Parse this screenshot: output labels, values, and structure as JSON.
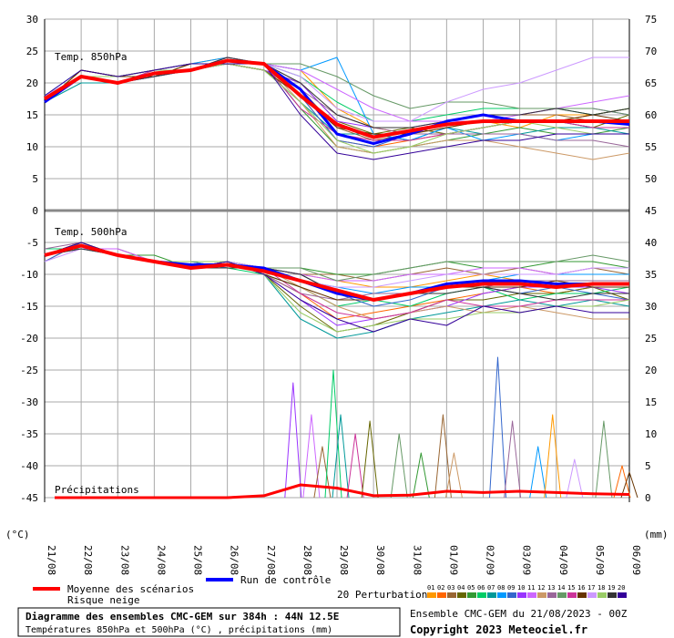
{
  "chart_data": {
    "type": "line",
    "x": [
      "21/08",
      "22/08",
      "23/08",
      "24/08",
      "25/08",
      "26/08",
      "27/08",
      "28/08",
      "29/08",
      "30/08",
      "31/08",
      "01/09",
      "02/09",
      "03/09",
      "04/09",
      "05/09",
      "06/09"
    ],
    "y_left_ticks": [
      "30",
      "25",
      "20",
      "15",
      "10",
      "5",
      "0",
      "-5",
      "-10",
      "-15",
      "-20",
      "-25",
      "-30",
      "-35",
      "-40",
      "-45"
    ],
    "y_right_ticks": [
      "75",
      "70",
      "65",
      "60",
      "55",
      "50",
      "45",
      "40",
      "35",
      "30",
      "25",
      "20",
      "15",
      "10",
      "5",
      "0"
    ],
    "ylabel_left": "(°C)",
    "ylabel_right": "(mm)",
    "panels": {
      "t850": {
        "label": "Temp. 850hPa",
        "ylim": [
          0,
          30
        ],
        "mean": [
          17.5,
          21,
          20,
          21.5,
          22,
          23.5,
          23,
          18,
          13.5,
          11.5,
          12.5,
          13.5,
          14,
          14,
          14,
          14,
          14
        ],
        "control": [
          17,
          21,
          20,
          21.5,
          22,
          23.5,
          23,
          19,
          12,
          10.5,
          12,
          14,
          15,
          14,
          14,
          14,
          13.5
        ],
        "perturbations": [
          [
            17,
            22,
            21,
            22,
            23,
            24,
            23,
            22,
            16,
            13,
            12,
            13,
            14,
            13,
            15,
            15,
            16
          ],
          [
            18,
            21,
            20,
            21,
            22,
            23,
            22,
            18,
            11,
            10,
            11,
            12,
            13,
            14,
            14,
            15,
            16
          ],
          [
            17,
            21,
            20,
            22,
            22,
            24,
            23,
            19,
            13,
            11,
            12,
            14,
            15,
            15,
            15,
            14,
            14
          ],
          [
            17,
            22,
            21,
            21,
            23,
            23,
            22,
            20,
            14,
            12,
            13,
            12,
            13,
            14,
            14,
            13,
            15
          ],
          [
            18,
            21,
            20,
            21,
            22,
            24,
            23,
            16,
            10,
            9,
            10,
            11,
            12,
            13,
            12,
            12,
            13
          ],
          [
            17,
            21,
            21,
            22,
            22,
            23,
            23,
            21,
            17,
            14,
            14,
            15,
            16,
            16,
            16,
            15,
            16
          ],
          [
            17,
            20,
            20,
            21,
            22,
            23,
            22,
            17,
            12,
            12,
            11,
            13,
            12,
            12,
            13,
            13,
            12
          ],
          [
            18,
            22,
            21,
            22,
            23,
            24,
            23,
            22,
            24,
            12,
            11,
            13,
            11,
            12,
            11,
            12,
            12
          ],
          [
            17,
            21,
            20,
            21,
            22,
            24,
            23,
            18,
            11,
            10,
            12,
            12,
            13,
            14,
            14,
            13,
            13
          ],
          [
            17,
            21,
            21,
            22,
            23,
            23,
            22,
            20,
            14,
            13,
            13,
            14,
            15,
            15,
            16,
            16,
            15
          ],
          [
            18,
            21,
            20,
            21,
            22,
            23,
            23,
            22,
            19,
            16,
            14,
            14,
            14,
            15,
            16,
            17,
            18
          ],
          [
            17,
            22,
            21,
            22,
            22,
            24,
            23,
            17,
            10,
            9,
            10,
            11,
            11,
            10,
            9,
            8,
            9
          ],
          [
            17,
            21,
            20,
            21,
            22,
            23,
            22,
            19,
            15,
            13,
            12,
            12,
            12,
            12,
            11,
            11,
            10
          ],
          [
            18,
            21,
            21,
            22,
            23,
            23,
            23,
            23,
            21,
            18,
            16,
            17,
            17,
            16,
            16,
            16,
            15
          ],
          [
            17,
            21,
            20,
            22,
            22,
            24,
            23,
            16,
            12,
            11,
            11,
            12,
            13,
            14,
            14,
            13,
            13
          ],
          [
            17,
            22,
            21,
            21,
            23,
            23,
            22,
            18,
            13,
            12,
            12,
            13,
            14,
            14,
            14,
            15,
            14
          ],
          [
            18,
            21,
            20,
            21,
            22,
            24,
            23,
            21,
            16,
            14,
            14,
            17,
            19,
            20,
            22,
            24,
            24
          ],
          [
            17,
            21,
            21,
            22,
            22,
            23,
            22,
            17,
            11,
            9,
            10,
            12,
            13,
            14,
            13,
            12,
            12
          ],
          [
            17,
            21,
            20,
            21,
            22,
            24,
            23,
            20,
            15,
            13,
            13,
            14,
            15,
            15,
            16,
            15,
            16
          ],
          [
            18,
            22,
            21,
            22,
            23,
            23,
            23,
            15,
            9,
            8,
            9,
            10,
            11,
            11,
            12,
            12,
            12
          ]
        ]
      },
      "t500": {
        "label": "Temp. 500hPa",
        "ylim": [
          -22,
          0
        ],
        "mean": [
          -7,
          -5.5,
          -7,
          -8,
          -9,
          -8.5,
          -9.5,
          -11,
          -12.5,
          -14,
          -13,
          -12,
          -11.5,
          -11.5,
          -12,
          -11.5,
          -11.5
        ],
        "control": [
          -7,
          -5.5,
          -7,
          -8,
          -8.5,
          -8.5,
          -9,
          -11,
          -13,
          -14,
          -13,
          -11.5,
          -11,
          -11,
          -11.5,
          -11.5,
          -11.5
        ],
        "perturbations": [
          [
            -7,
            -6,
            -7,
            -8,
            -9,
            -8,
            -9,
            -10,
            -11,
            -12,
            -12,
            -11,
            -10,
            -11,
            -11,
            -11,
            -11
          ],
          [
            -7,
            -5,
            -7,
            -8,
            -9,
            -8,
            -10,
            -13,
            -17,
            -16,
            -15,
            -14,
            -13,
            -12,
            -13,
            -12,
            -12
          ],
          [
            -8,
            -5,
            -7,
            -8,
            -8,
            -9,
            -9,
            -10,
            -10,
            -11,
            -10,
            -9,
            -10,
            -9,
            -10,
            -9,
            -10
          ],
          [
            -7,
            -6,
            -6,
            -8,
            -9,
            -8,
            -10,
            -15,
            -19,
            -18,
            -16,
            -14,
            -14,
            -13,
            -13,
            -12,
            -14
          ],
          [
            -7,
            -5,
            -7,
            -7,
            -9,
            -8,
            -9,
            -9,
            -10,
            -10,
            -9,
            -8,
            -9,
            -9,
            -8,
            -8,
            -9
          ],
          [
            -6,
            -6,
            -7,
            -8,
            -8,
            -9,
            -10,
            -12,
            -15,
            -14,
            -15,
            -13,
            -12,
            -14,
            -13,
            -13,
            -12
          ],
          [
            -7,
            -5,
            -7,
            -8,
            -9,
            -8,
            -10,
            -17,
            -20,
            -19,
            -17,
            -16,
            -15,
            -14,
            -15,
            -14,
            -15
          ],
          [
            -7,
            -6,
            -7,
            -8,
            -9,
            -8,
            -9,
            -11,
            -12,
            -13,
            -12,
            -12,
            -11,
            -10,
            -10,
            -10,
            -10
          ],
          [
            -8,
            -5,
            -7,
            -8,
            -8,
            -9,
            -9,
            -10,
            -13,
            -15,
            -14,
            -12,
            -12,
            -13,
            -12,
            -13,
            -14
          ],
          [
            -7,
            -5,
            -7,
            -8,
            -9,
            -8,
            -10,
            -14,
            -18,
            -17,
            -16,
            -15,
            -13,
            -12,
            -12,
            -12,
            -13
          ],
          [
            -7,
            -6,
            -6,
            -8,
            -9,
            -8,
            -9,
            -10,
            -11,
            -11,
            -10,
            -10,
            -9,
            -9,
            -10,
            -9,
            -9
          ],
          [
            -7,
            -5,
            -7,
            -8,
            -9,
            -9,
            -9,
            -12,
            -15,
            -17,
            -16,
            -15,
            -16,
            -15,
            -16,
            -17,
            -17
          ],
          [
            -6,
            -5,
            -7,
            -8,
            -9,
            -8,
            -10,
            -13,
            -14,
            -13,
            -13,
            -12,
            -12,
            -11,
            -11,
            -11,
            -11
          ],
          [
            -7,
            -6,
            -7,
            -8,
            -8,
            -8,
            -9,
            -9,
            -11,
            -10,
            -9,
            -8,
            -8,
            -8,
            -8,
            -7,
            -8
          ],
          [
            -7,
            -5,
            -7,
            -8,
            -9,
            -9,
            -9,
            -13,
            -16,
            -17,
            -16,
            -14,
            -15,
            -15,
            -14,
            -14,
            -14
          ],
          [
            -7,
            -5,
            -7,
            -8,
            -9,
            -8,
            -10,
            -12,
            -14,
            -14,
            -13,
            -12,
            -12,
            -12,
            -11,
            -12,
            -12
          ],
          [
            -8,
            -6,
            -7,
            -8,
            -9,
            -8,
            -9,
            -11,
            -12,
            -12,
            -11,
            -10,
            -10,
            -10,
            -10,
            -9,
            -9
          ],
          [
            -7,
            -5,
            -7,
            -8,
            -8,
            -8,
            -10,
            -16,
            -19,
            -18,
            -17,
            -17,
            -16,
            -16,
            -15,
            -15,
            -14
          ],
          [
            -7,
            -6,
            -7,
            -8,
            -9,
            -9,
            -9,
            -10,
            -13,
            -14,
            -13,
            -13,
            -12,
            -13,
            -14,
            -13,
            -13
          ],
          [
            -7,
            -5,
            -7,
            -8,
            -9,
            -8,
            -10,
            -14,
            -17,
            -19,
            -17,
            -18,
            -15,
            -16,
            -15,
            -16,
            -16
          ]
        ]
      },
      "precip": {
        "label": "Précipitations",
        "ylim": [
          0,
          30
        ],
        "mean": [
          0,
          0,
          0,
          0,
          0,
          0,
          0.3,
          2,
          1.5,
          0.3,
          0.4,
          1,
          0.8,
          1,
          0.8,
          0.6,
          0.5
        ],
        "spikes": [
          {
            "x": 6.8,
            "v": 18,
            "series": 10
          },
          {
            "x": 7.3,
            "v": 13,
            "series": 11
          },
          {
            "x": 7.6,
            "v": 8,
            "series": 3
          },
          {
            "x": 7.9,
            "v": 20,
            "series": 6
          },
          {
            "x": 8.1,
            "v": 13,
            "series": 7
          },
          {
            "x": 8.5,
            "v": 10,
            "series": 15
          },
          {
            "x": 8.9,
            "v": 12,
            "series": 4
          },
          {
            "x": 9.7,
            "v": 10,
            "series": 14
          },
          {
            "x": 10.3,
            "v": 7,
            "series": 5
          },
          {
            "x": 10.9,
            "v": 13,
            "series": 3
          },
          {
            "x": 11.2,
            "v": 7,
            "series": 12
          },
          {
            "x": 12.4,
            "v": 22,
            "series": 9
          },
          {
            "x": 12.8,
            "v": 12,
            "series": 13
          },
          {
            "x": 13.5,
            "v": 8,
            "series": 8
          },
          {
            "x": 13.9,
            "v": 13,
            "series": 1
          },
          {
            "x": 14.5,
            "v": 6,
            "series": 17
          },
          {
            "x": 15.3,
            "v": 12,
            "series": 14
          },
          {
            "x": 15.8,
            "v": 5,
            "series": 2
          },
          {
            "x": 16.0,
            "v": 4,
            "series": 16
          }
        ]
      }
    },
    "legend": {
      "mean_label": "Moyenne des scénarios",
      "snow_label": "Risque neige",
      "control_label": "Run de contrôle",
      "perturb_label": "20 Perturbations",
      "perturb_numbers": [
        "01",
        "02",
        "03",
        "04",
        "05",
        "06",
        "07",
        "08",
        "09",
        "10",
        "11",
        "12",
        "13",
        "14",
        "15",
        "16",
        "17",
        "18",
        "19",
        "20"
      ]
    },
    "title": "Diagramme des ensembles CMC-GEM sur 384h : 44N 12.5E",
    "subtitle": "Températures 850hPa et 500hPa (°C) , précipitations (mm)",
    "run_info": "Ensemble CMC-GEM du 21/08/2023 - 00Z",
    "copyright": "Copyright 2023 Meteociel.fr"
  },
  "colors": {
    "mean": "#ff0000",
    "control": "#0000ff",
    "grid": "#aaaaaa",
    "separator": "#888888",
    "perturbations": [
      "#ff9900",
      "#ff6600",
      "#996633",
      "#666600",
      "#339933",
      "#00cc66",
      "#009999",
      "#0099ff",
      "#3366cc",
      "#9933ff",
      "#cc66ff",
      "#cc9966",
      "#996699",
      "#669966",
      "#cc3399",
      "#663300",
      "#cc99ff",
      "#99cc66",
      "#333333",
      "#330099"
    ]
  }
}
